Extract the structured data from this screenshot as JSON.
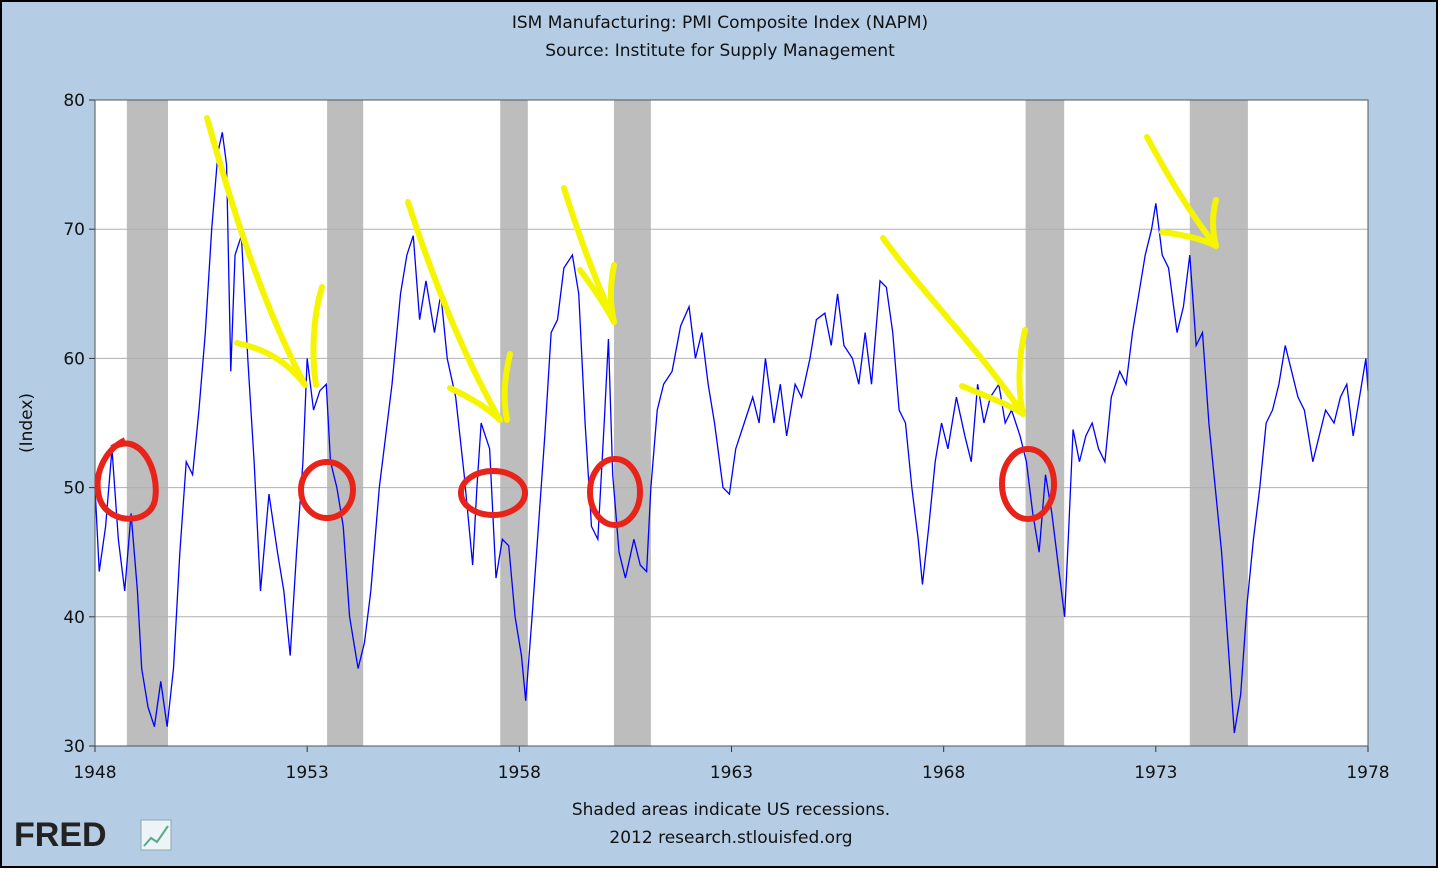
{
  "chart_data": {
    "type": "line",
    "title": "ISM Manufacturing: PMI Composite Index (NAPM)",
    "subtitle": "Source: Institute for Supply Management",
    "y_label": "(Index)",
    "note": "Shaded areas indicate US recessions.",
    "source": "2012 research.stlouisfed.org",
    "logo": "FRED",
    "xlim": [
      1948,
      1978
    ],
    "xticks": [
      1948,
      1953,
      1958,
      1963,
      1968,
      1973,
      1978
    ],
    "ylim": [
      30,
      80
    ],
    "yticks": [
      30,
      40,
      50,
      60,
      70,
      80
    ],
    "grid": true,
    "recession_color": "#bdbdbd",
    "recessions": [
      [
        1948.75,
        1949.72
      ],
      [
        1953.47,
        1954.32
      ],
      [
        1957.55,
        1958.2
      ],
      [
        1960.23,
        1961.1
      ],
      [
        1969.93,
        1970.84
      ],
      [
        1973.8,
        1975.17
      ]
    ],
    "x": [
      1948.0,
      1948.1,
      1948.25,
      1948.4,
      1948.55,
      1948.7,
      1948.85,
      1949.0,
      1949.1,
      1949.25,
      1949.4,
      1949.55,
      1949.7,
      1949.85,
      1950.0,
      1950.15,
      1950.3,
      1950.45,
      1950.6,
      1950.75,
      1950.9,
      1951.0,
      1951.1,
      1951.2,
      1951.3,
      1951.45,
      1951.6,
      1951.75,
      1951.9,
      1952.1,
      1952.3,
      1952.45,
      1952.6,
      1952.75,
      1952.9,
      1953.0,
      1953.15,
      1953.3,
      1953.45,
      1953.55,
      1953.7,
      1953.85,
      1954.0,
      1954.2,
      1954.35,
      1954.5,
      1954.7,
      1954.85,
      1955.0,
      1955.2,
      1955.35,
      1955.5,
      1955.65,
      1955.8,
      1956.0,
      1956.15,
      1956.3,
      1956.5,
      1956.7,
      1956.9,
      1957.0,
      1957.1,
      1957.3,
      1957.45,
      1957.6,
      1957.75,
      1957.9,
      1958.05,
      1958.15,
      1958.3,
      1958.45,
      1958.6,
      1958.75,
      1958.9,
      1959.05,
      1959.25,
      1959.4,
      1959.55,
      1959.7,
      1959.85,
      1960.0,
      1960.1,
      1960.2,
      1960.35,
      1960.5,
      1960.7,
      1960.85,
      1961.0,
      1961.1,
      1961.25,
      1961.4,
      1961.6,
      1961.8,
      1962.0,
      1962.15,
      1962.3,
      1962.45,
      1962.6,
      1962.8,
      1962.95,
      1963.1,
      1963.3,
      1963.5,
      1963.65,
      1963.8,
      1964.0,
      1964.15,
      1964.3,
      1964.5,
      1964.65,
      1964.85,
      1965.0,
      1965.2,
      1965.35,
      1965.5,
      1965.65,
      1965.85,
      1966.0,
      1966.15,
      1966.3,
      1966.5,
      1966.65,
      1966.8,
      1966.95,
      1967.1,
      1967.25,
      1967.4,
      1967.5,
      1967.65,
      1967.8,
      1967.95,
      1968.1,
      1968.3,
      1968.5,
      1968.65,
      1968.8,
      1968.95,
      1969.1,
      1969.3,
      1969.45,
      1969.6,
      1969.8,
      1969.95,
      1970.1,
      1970.25,
      1970.4,
      1970.55,
      1970.7,
      1970.85,
      1970.95,
      1971.05,
      1971.2,
      1971.35,
      1971.5,
      1971.65,
      1971.8,
      1971.95,
      1972.15,
      1972.3,
      1972.45,
      1972.6,
      1972.75,
      1972.9,
      1973.0,
      1973.15,
      1973.3,
      1973.5,
      1973.65,
      1973.8,
      1973.95,
      1974.1,
      1974.25,
      1974.4,
      1974.55,
      1974.7,
      1974.85,
      1975.0,
      1975.15,
      1975.3,
      1975.45,
      1975.6,
      1975.75,
      1975.9,
      1976.05,
      1976.2,
      1976.35,
      1976.5,
      1976.7,
      1976.85,
      1977.0,
      1977.2,
      1977.35,
      1977.5,
      1977.65,
      1977.8,
      1977.95,
      1978.0
    ],
    "series": [
      {
        "color": "#0000ff",
        "values": [
          50,
          43.5,
          47,
          53,
          46,
          42,
          48,
          42,
          36,
          33,
          31.5,
          35,
          31.5,
          36,
          45,
          52,
          51,
          56,
          62,
          70,
          76,
          77.5,
          75,
          59,
          68,
          69.5,
          60,
          52,
          42,
          49.5,
          45,
          42,
          37,
          45,
          52,
          60,
          56,
          57.5,
          58,
          52,
          50,
          47,
          40,
          36,
          38,
          42,
          50,
          54,
          58,
          65,
          68,
          69.5,
          63,
          66,
          62,
          65,
          60,
          57,
          51,
          44,
          50,
          55,
          53,
          43,
          46,
          45.5,
          40,
          37,
          33.5,
          40,
          47,
          54,
          62,
          63,
          67,
          68,
          65,
          55,
          47,
          46,
          55,
          61.5,
          51,
          45,
          43,
          46,
          44,
          43.5,
          50,
          56,
          58,
          59,
          62.5,
          64,
          60,
          62,
          58,
          55,
          50,
          49.5,
          53,
          55,
          57,
          55,
          60,
          55,
          58,
          54,
          58,
          57,
          60,
          63,
          63.5,
          61,
          65,
          61,
          60,
          58,
          62,
          58,
          66,
          65.5,
          62,
          56,
          55,
          50,
          46,
          42.5,
          47,
          52,
          55,
          53,
          57,
          54,
          52,
          58,
          55,
          57,
          58,
          55,
          56,
          54,
          52,
          48,
          45,
          51,
          48,
          44,
          40,
          47,
          54.5,
          52,
          54,
          55,
          53,
          52,
          57,
          59,
          58,
          62,
          65,
          68,
          70,
          72,
          68,
          67,
          62,
          64,
          68,
          61,
          62,
          55,
          50,
          45,
          38,
          31,
          34,
          41,
          46,
          50,
          55,
          56,
          58,
          61,
          59,
          57,
          56,
          52,
          54,
          56,
          55,
          57,
          58,
          54,
          57,
          60,
          57.5
        ]
      }
    ]
  }
}
